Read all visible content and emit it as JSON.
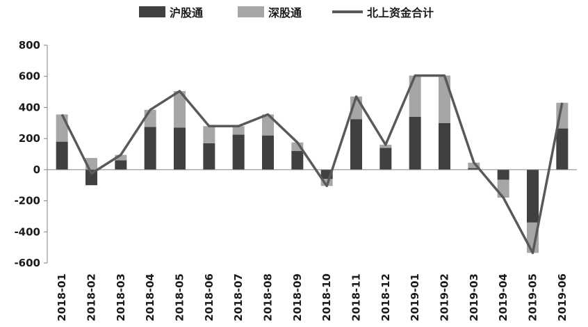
{
  "chart_data": {
    "type": "bar",
    "stacked": true,
    "categories": [
      "2018-01",
      "2018-02",
      "2018-03",
      "2018-04",
      "2018-05",
      "2018-06",
      "2018-07",
      "2018-08",
      "2018-09",
      "2018-10",
      "2018-11",
      "2018-12",
      "2019-01",
      "2019-02",
      "2019-03",
      "2019-04",
      "2019-05",
      "2019-06"
    ],
    "series": [
      {
        "name": "沪股通",
        "kind": "bar",
        "color": "#404040",
        "values": [
          180,
          -100,
          60,
          275,
          270,
          170,
          225,
          220,
          120,
          -60,
          325,
          140,
          340,
          300,
          10,
          -65,
          -340,
          265
        ]
      },
      {
        "name": "深股通",
        "kind": "bar",
        "color": "#a6a6a6",
        "values": [
          175,
          75,
          35,
          110,
          235,
          110,
          55,
          135,
          55,
          -45,
          145,
          20,
          265,
          305,
          35,
          -115,
          -195,
          165
        ]
      },
      {
        "name": "北上资金合计",
        "kind": "line",
        "color": "#595959",
        "values": [
          355,
          -25,
          95,
          385,
          505,
          280,
          280,
          355,
          175,
          -105,
          470,
          160,
          605,
          605,
          45,
          -180,
          -535,
          430
        ]
      }
    ],
    "ylim": [
      -600,
      800
    ],
    "yticks": [
      "800",
      "600",
      "400",
      "200",
      "0",
      "-200",
      "-400",
      "-600"
    ],
    "ytick_values": [
      800,
      600,
      400,
      200,
      0,
      -200,
      -400,
      -600
    ],
    "grid": false,
    "legend_position": "top-center",
    "title": "",
    "xlabel": "",
    "ylabel": ""
  }
}
